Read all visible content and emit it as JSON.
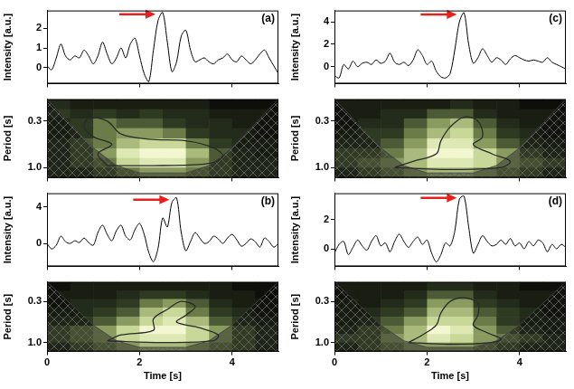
{
  "chart_data": [
    {
      "type": "line",
      "title": "(a)",
      "ylabel": "Intensity [a.u.]",
      "color": "#000000",
      "x": [
        0,
        0.1,
        0.2,
        0.3,
        0.4,
        0.5,
        0.6,
        0.7,
        0.8,
        0.9,
        1,
        1.1,
        1.2,
        1.3,
        1.4,
        1.5,
        1.6,
        1.7,
        1.8,
        1.9,
        2,
        2.1,
        2.2,
        2.3,
        2.4,
        2.5,
        2.6,
        2.7,
        2.8,
        2.9,
        3,
        3.1,
        3.2,
        3.3,
        3.4,
        3.5,
        3.6,
        3.7,
        3.8,
        3.9,
        4,
        4.1,
        4.2,
        4.3,
        4.4,
        4.5,
        4.6,
        4.7,
        4.8,
        4.9,
        5
      ],
      "values": [
        0.1,
        -0.1,
        0.5,
        1.2,
        0.6,
        0.4,
        0.6,
        0.5,
        0.9,
        0.6,
        0.2,
        0.6,
        1.3,
        0.7,
        0.2,
        0.5,
        1.0,
        0.5,
        1.2,
        1.5,
        0.6,
        -0.3,
        -0.7,
        0.9,
        2.4,
        2.8,
        1.3,
        -0.2,
        0.3,
        1.6,
        1.9,
        0.9,
        0.3,
        0.4,
        0.5,
        0.3,
        0.2,
        0.4,
        0.5,
        0.7,
        0.4,
        0.3,
        0.6,
        0.4,
        0.2,
        0.4,
        0.7,
        0.9,
        0.5,
        0.1,
        -0.3
      ],
      "xlim": [
        0,
        5
      ],
      "xticks": [
        0,
        2,
        4
      ],
      "ylim": [
        -0.8,
        2.9
      ],
      "yticks": [
        0,
        1,
        2
      ],
      "grid": false,
      "tick_labels": "y"
    },
    {
      "type": "heatmap",
      "ylabel": "Period [s]",
      "x_edges": [
        0,
        0.5,
        1,
        1.5,
        2,
        2.5,
        3,
        3.5,
        4,
        4.5,
        5
      ],
      "y_edges": [
        0.17,
        0.22,
        0.28,
        0.36,
        0.47,
        0.61,
        0.78,
        1.0,
        1.3
      ],
      "power": [
        [
          0.2,
          0.1,
          0.1,
          0.1,
          0.1,
          0.1,
          0.1,
          0.0,
          0.0,
          0.0
        ],
        [
          0.3,
          0.2,
          0.3,
          0.2,
          0.3,
          0.2,
          0.2,
          0.1,
          0.1,
          0.1
        ],
        [
          0.2,
          0.3,
          0.5,
          0.4,
          0.4,
          0.3,
          0.2,
          0.2,
          0.1,
          0.1
        ],
        [
          0.2,
          0.3,
          0.5,
          0.6,
          0.6,
          0.5,
          0.3,
          0.2,
          0.2,
          0.1
        ],
        [
          0.3,
          0.4,
          0.5,
          0.7,
          0.8,
          0.8,
          0.5,
          0.3,
          0.2,
          0.2
        ],
        [
          0.3,
          0.4,
          0.6,
          0.9,
          1.0,
          1.0,
          0.7,
          0.4,
          0.3,
          0.2
        ],
        [
          0.3,
          0.4,
          0.5,
          0.8,
          0.9,
          0.9,
          0.6,
          0.4,
          0.3,
          0.3
        ],
        [
          0.3,
          0.3,
          0.4,
          0.5,
          0.6,
          0.6,
          0.5,
          0.4,
          0.3,
          0.3
        ]
      ],
      "contour": {
        "x": [
          1.3,
          1.1,
          1.4,
          1.0,
          0.8,
          0.9,
          1.3,
          1.6,
          2.2,
          3.0,
          3.6,
          3.8,
          3.5,
          2.5,
          1.3
        ],
        "y": [
          0.95,
          0.7,
          0.55,
          0.45,
          0.35,
          0.28,
          0.3,
          0.42,
          0.48,
          0.5,
          0.6,
          0.75,
          0.9,
          0.95,
          0.95
        ]
      },
      "coi": {
        "x": [
          0,
          0.5,
          1,
          1.5,
          2,
          2.5,
          3,
          3.5,
          4,
          4.5,
          5
        ],
        "y": [
          0.17,
          0.32,
          0.6,
          0.95,
          1.15,
          1.15,
          1.15,
          0.95,
          0.6,
          0.32,
          0.17
        ]
      },
      "xlim": [
        0,
        5
      ],
      "xticks": [
        0,
        2,
        4
      ],
      "ylim": [
        1.3,
        0.17
      ],
      "yticks": [
        0.3,
        {
          "value": 1,
          "label": "1.0"
        }
      ],
      "log": "y",
      "grid": false,
      "tick_labels": "y"
    },
    {
      "type": "line",
      "title": "(b)",
      "ylabel": "Intensity [a.u.]",
      "color": "#000000",
      "x": [
        0,
        0.1,
        0.2,
        0.3,
        0.4,
        0.5,
        0.6,
        0.7,
        0.8,
        0.9,
        1,
        1.1,
        1.2,
        1.3,
        1.4,
        1.5,
        1.6,
        1.7,
        1.8,
        1.9,
        2,
        2.1,
        2.2,
        2.3,
        2.4,
        2.5,
        2.6,
        2.7,
        2.8,
        2.9,
        3,
        3.1,
        3.2,
        3.3,
        3.4,
        3.5,
        3.6,
        3.7,
        3.8,
        3.9,
        4,
        4.1,
        4.2,
        4.3,
        4.4,
        4.5,
        4.6,
        4.7,
        4.8,
        4.9,
        5
      ],
      "values": [
        0.0,
        -0.6,
        -0.2,
        0.8,
        0.2,
        0.0,
        0.3,
        0.1,
        0.6,
        0.1,
        -0.2,
        1.2,
        2.0,
        1.0,
        0.3,
        1.4,
        2.0,
        0.8,
        0.4,
        1.5,
        2.2,
        1.0,
        -1.0,
        -2.0,
        -0.5,
        2.8,
        1.8,
        4.5,
        5.0,
        1.2,
        -0.8,
        0.2,
        1.2,
        0.6,
        0.0,
        0.2,
        0.8,
        0.5,
        0.0,
        0.6,
        1.0,
        0.4,
        -0.3,
        0.0,
        0.5,
        0.2,
        -0.4,
        0.6,
        0.2,
        -0.4,
        0.0
      ],
      "xlim": [
        0,
        5
      ],
      "xticks": [
        0,
        2,
        4
      ],
      "ylim": [
        -2.5,
        5.5
      ],
      "yticks": [
        0,
        4
      ],
      "grid": false,
      "tick_labels": "y"
    },
    {
      "type": "heatmap",
      "ylabel": "Period [s]",
      "xlabel": "Time [s]",
      "x_edges": [
        0,
        0.5,
        1,
        1.5,
        2,
        2.5,
        3,
        3.5,
        4,
        4.5,
        5
      ],
      "y_edges": [
        0.17,
        0.22,
        0.28,
        0.36,
        0.47,
        0.61,
        0.78,
        1.0,
        1.3
      ],
      "power": [
        [
          0.0,
          0.1,
          0.1,
          0.1,
          0.1,
          0.1,
          0.1,
          0.1,
          0.0,
          0.0
        ],
        [
          0.1,
          0.1,
          0.1,
          0.2,
          0.3,
          0.3,
          0.2,
          0.1,
          0.1,
          0.0
        ],
        [
          0.1,
          0.2,
          0.2,
          0.3,
          0.5,
          0.6,
          0.4,
          0.2,
          0.1,
          0.1
        ],
        [
          0.2,
          0.2,
          0.3,
          0.4,
          0.7,
          0.8,
          0.5,
          0.3,
          0.2,
          0.1
        ],
        [
          0.3,
          0.3,
          0.4,
          0.6,
          0.8,
          0.9,
          0.7,
          0.4,
          0.3,
          0.2
        ],
        [
          0.4,
          0.5,
          0.6,
          0.8,
          1.0,
          1.0,
          0.8,
          0.6,
          0.4,
          0.3
        ],
        [
          0.4,
          0.5,
          0.6,
          0.8,
          0.9,
          0.9,
          0.8,
          0.6,
          0.4,
          0.3
        ],
        [
          0.3,
          0.4,
          0.5,
          0.6,
          0.7,
          0.7,
          0.6,
          0.5,
          0.4,
          0.3
        ]
      ],
      "contour": {
        "x": [
          1.3,
          1.6,
          2.3,
          2.3,
          2.6,
          2.9,
          3.2,
          3.0,
          2.8,
          3.3,
          3.7,
          3.6,
          2.5,
          1.3
        ],
        "y": [
          0.95,
          0.8,
          0.7,
          0.5,
          0.38,
          0.3,
          0.35,
          0.45,
          0.55,
          0.65,
          0.8,
          0.95,
          1.0,
          0.95
        ]
      },
      "coi": {
        "x": [
          0,
          0.5,
          1,
          1.5,
          2,
          2.5,
          3,
          3.5,
          4,
          4.5,
          5
        ],
        "y": [
          0.17,
          0.32,
          0.6,
          0.95,
          1.15,
          1.15,
          1.15,
          0.95,
          0.6,
          0.32,
          0.17
        ]
      },
      "xlim": [
        0,
        5
      ],
      "xticks": [
        0,
        2,
        4
      ],
      "ylim": [
        1.3,
        0.17
      ],
      "yticks": [
        0.3,
        {
          "value": 1,
          "label": "1.0"
        }
      ],
      "log": "y",
      "grid": false
    },
    {
      "type": "line",
      "title": "(c)",
      "ylabel": "Intensity [a.u.]",
      "color": "#000000",
      "x": [
        0,
        0.1,
        0.2,
        0.3,
        0.4,
        0.5,
        0.6,
        0.7,
        0.8,
        0.9,
        1,
        1.1,
        1.2,
        1.3,
        1.4,
        1.5,
        1.6,
        1.7,
        1.8,
        1.9,
        2,
        2.1,
        2.2,
        2.3,
        2.4,
        2.5,
        2.6,
        2.7,
        2.8,
        2.9,
        3,
        3.1,
        3.2,
        3.3,
        3.4,
        3.5,
        3.6,
        3.7,
        3.8,
        3.9,
        4,
        4.1,
        4.2,
        4.3,
        4.4,
        4.5,
        4.6,
        4.7,
        4.8,
        4.9,
        5
      ],
      "values": [
        -0.8,
        -1.0,
        0.2,
        -0.2,
        0.5,
        0.0,
        0.3,
        0.4,
        0.2,
        0.6,
        0.3,
        0.5,
        1.2,
        0.4,
        0.2,
        0.4,
        0.1,
        0.6,
        1.5,
        1.0,
        0.2,
        0.5,
        -0.4,
        -0.9,
        -1.0,
        -0.6,
        1.5,
        4.0,
        4.8,
        2.0,
        0.3,
        0.8,
        1.6,
        1.0,
        0.4,
        0.8,
        0.6,
        0.2,
        0.7,
        1.0,
        0.8,
        0.6,
        0.5,
        0.6,
        0.5,
        0.4,
        0.8,
        0.4,
        0.2,
        0.0,
        -0.2
      ],
      "xlim": [
        0,
        5
      ],
      "xticks": [
        0,
        2,
        4
      ],
      "ylim": [
        -1.5,
        5
      ],
      "yticks": [
        0,
        2,
        4
      ],
      "grid": false,
      "tick_labels": "y"
    },
    {
      "type": "heatmap",
      "ylabel": "Period [s]",
      "x_edges": [
        0,
        0.5,
        1,
        1.5,
        2,
        2.5,
        3,
        3.5,
        4,
        4.5,
        5
      ],
      "y_edges": [
        0.17,
        0.22,
        0.28,
        0.36,
        0.47,
        0.61,
        0.78,
        1.0,
        1.3
      ],
      "power": [
        [
          0.1,
          0.1,
          0.1,
          0.1,
          0.1,
          0.2,
          0.1,
          0.1,
          0.0,
          0.0
        ],
        [
          0.1,
          0.1,
          0.2,
          0.2,
          0.4,
          0.4,
          0.2,
          0.1,
          0.1,
          0.1
        ],
        [
          0.1,
          0.2,
          0.2,
          0.4,
          0.6,
          0.7,
          0.4,
          0.2,
          0.1,
          0.1
        ],
        [
          0.2,
          0.3,
          0.3,
          0.5,
          0.7,
          0.8,
          0.5,
          0.3,
          0.2,
          0.1
        ],
        [
          0.3,
          0.3,
          0.4,
          0.6,
          0.9,
          0.9,
          0.6,
          0.4,
          0.3,
          0.2
        ],
        [
          0.4,
          0.4,
          0.5,
          0.7,
          1.0,
          1.0,
          0.8,
          0.6,
          0.4,
          0.3
        ],
        [
          0.4,
          0.5,
          0.6,
          0.7,
          0.9,
          0.9,
          0.8,
          0.6,
          0.5,
          0.4
        ],
        [
          0.3,
          0.4,
          0.5,
          0.6,
          0.7,
          0.7,
          0.6,
          0.5,
          0.4,
          0.3
        ]
      ],
      "contour": {
        "x": [
          1.3,
          1.7,
          2.2,
          2.3,
          2.5,
          2.8,
          3.1,
          3.2,
          3.0,
          3.4,
          3.8,
          3.6,
          2.5,
          1.3
        ],
        "y": [
          1.0,
          0.85,
          0.7,
          0.5,
          0.35,
          0.27,
          0.3,
          0.45,
          0.55,
          0.7,
          0.85,
          1.0,
          1.05,
          1.0
        ]
      },
      "coi": {
        "x": [
          0,
          0.5,
          1,
          1.5,
          2,
          2.5,
          3,
          3.5,
          4,
          4.5,
          5
        ],
        "y": [
          0.17,
          0.32,
          0.6,
          0.95,
          1.15,
          1.15,
          1.15,
          0.95,
          0.6,
          0.32,
          0.17
        ]
      },
      "xlim": [
        0,
        5
      ],
      "xticks": [
        0,
        2,
        4
      ],
      "ylim": [
        1.3,
        0.17
      ],
      "yticks": [
        0.3,
        {
          "value": 1,
          "label": "1.0"
        }
      ],
      "log": "y",
      "grid": false,
      "tick_labels": "y"
    },
    {
      "type": "line",
      "title": "(d)",
      "ylabel": "Intensity [a.u.]",
      "color": "#000000",
      "x": [
        0,
        0.1,
        0.2,
        0.3,
        0.4,
        0.5,
        0.6,
        0.7,
        0.8,
        0.9,
        1,
        1.1,
        1.2,
        1.3,
        1.4,
        1.5,
        1.6,
        1.7,
        1.8,
        1.9,
        2,
        2.1,
        2.2,
        2.3,
        2.4,
        2.5,
        2.6,
        2.7,
        2.8,
        2.9,
        3,
        3.1,
        3.2,
        3.3,
        3.4,
        3.5,
        3.6,
        3.7,
        3.8,
        3.9,
        4,
        4.1,
        4.2,
        4.3,
        4.4,
        4.5,
        4.6,
        4.7,
        4.8,
        4.9,
        5
      ],
      "values": [
        -0.3,
        0.3,
        0.5,
        -0.4,
        0.1,
        0.6,
        0.2,
        -0.1,
        0.5,
        0.9,
        0.2,
        0.4,
        -0.2,
        0.5,
        1.0,
        0.5,
        0.1,
        0.5,
        0.8,
        0.3,
        0.6,
        -0.3,
        -0.9,
        -0.4,
        0.4,
        0.2,
        1.2,
        3.4,
        3.6,
        1.5,
        -0.3,
        0.3,
        0.9,
        0.5,
        0.2,
        0.3,
        0.6,
        0.3,
        0.7,
        0.2,
        0.4,
        0.0,
        0.5,
        0.2,
        0.6,
        0.4,
        -0.2,
        0.3,
        0.0,
        0.3,
        0.1
      ],
      "xlim": [
        0,
        5
      ],
      "xticks": [
        0,
        2,
        4
      ],
      "ylim": [
        -1.2,
        3.8
      ],
      "yticks": [
        0,
        2
      ],
      "grid": false,
      "tick_labels": "y"
    },
    {
      "type": "heatmap",
      "ylabel": "Period [s]",
      "xlabel": "Time [s]",
      "x_edges": [
        0,
        0.5,
        1,
        1.5,
        2,
        2.5,
        3,
        3.5,
        4,
        4.5,
        5
      ],
      "y_edges": [
        0.17,
        0.22,
        0.28,
        0.36,
        0.47,
        0.61,
        0.78,
        1.0,
        1.3
      ],
      "power": [
        [
          0.1,
          0.1,
          0.1,
          0.1,
          0.2,
          0.2,
          0.1,
          0.1,
          0.0,
          0.0
        ],
        [
          0.1,
          0.1,
          0.1,
          0.2,
          0.4,
          0.4,
          0.2,
          0.1,
          0.1,
          0.1
        ],
        [
          0.2,
          0.1,
          0.2,
          0.3,
          0.6,
          0.6,
          0.3,
          0.2,
          0.1,
          0.1
        ],
        [
          0.2,
          0.2,
          0.3,
          0.4,
          0.7,
          0.7,
          0.4,
          0.3,
          0.2,
          0.1
        ],
        [
          0.2,
          0.3,
          0.4,
          0.6,
          0.8,
          0.8,
          0.5,
          0.3,
          0.2,
          0.2
        ],
        [
          0.3,
          0.4,
          0.5,
          0.7,
          1.0,
          0.9,
          0.6,
          0.4,
          0.3,
          0.2
        ],
        [
          0.4,
          0.4,
          0.6,
          0.7,
          0.9,
          0.8,
          0.6,
          0.5,
          0.4,
          0.3
        ],
        [
          0.3,
          0.4,
          0.5,
          0.6,
          0.6,
          0.6,
          0.5,
          0.4,
          0.3,
          0.3
        ]
      ],
      "contour": {
        "x": [
          1.6,
          1.9,
          2.2,
          2.3,
          2.5,
          2.8,
          3.1,
          3.1,
          3.0,
          3.3,
          3.6,
          3.4,
          2.5,
          1.6
        ],
        "y": [
          1.0,
          0.8,
          0.6,
          0.42,
          0.3,
          0.27,
          0.32,
          0.45,
          0.6,
          0.75,
          0.9,
          1.0,
          1.05,
          1.0
        ]
      },
      "coi": {
        "x": [
          0,
          0.5,
          1,
          1.5,
          2,
          2.5,
          3,
          3.5,
          4,
          4.5,
          5
        ],
        "y": [
          0.17,
          0.32,
          0.6,
          0.95,
          1.15,
          1.15,
          1.15,
          0.95,
          0.6,
          0.32,
          0.17
        ]
      },
      "xlim": [
        0,
        5
      ],
      "xticks": [
        0,
        2,
        4
      ],
      "ylim": [
        1.3,
        0.17
      ],
      "yticks": [
        0.3,
        {
          "value": 1,
          "label": "1.0"
        }
      ],
      "log": "y",
      "grid": false
    }
  ]
}
